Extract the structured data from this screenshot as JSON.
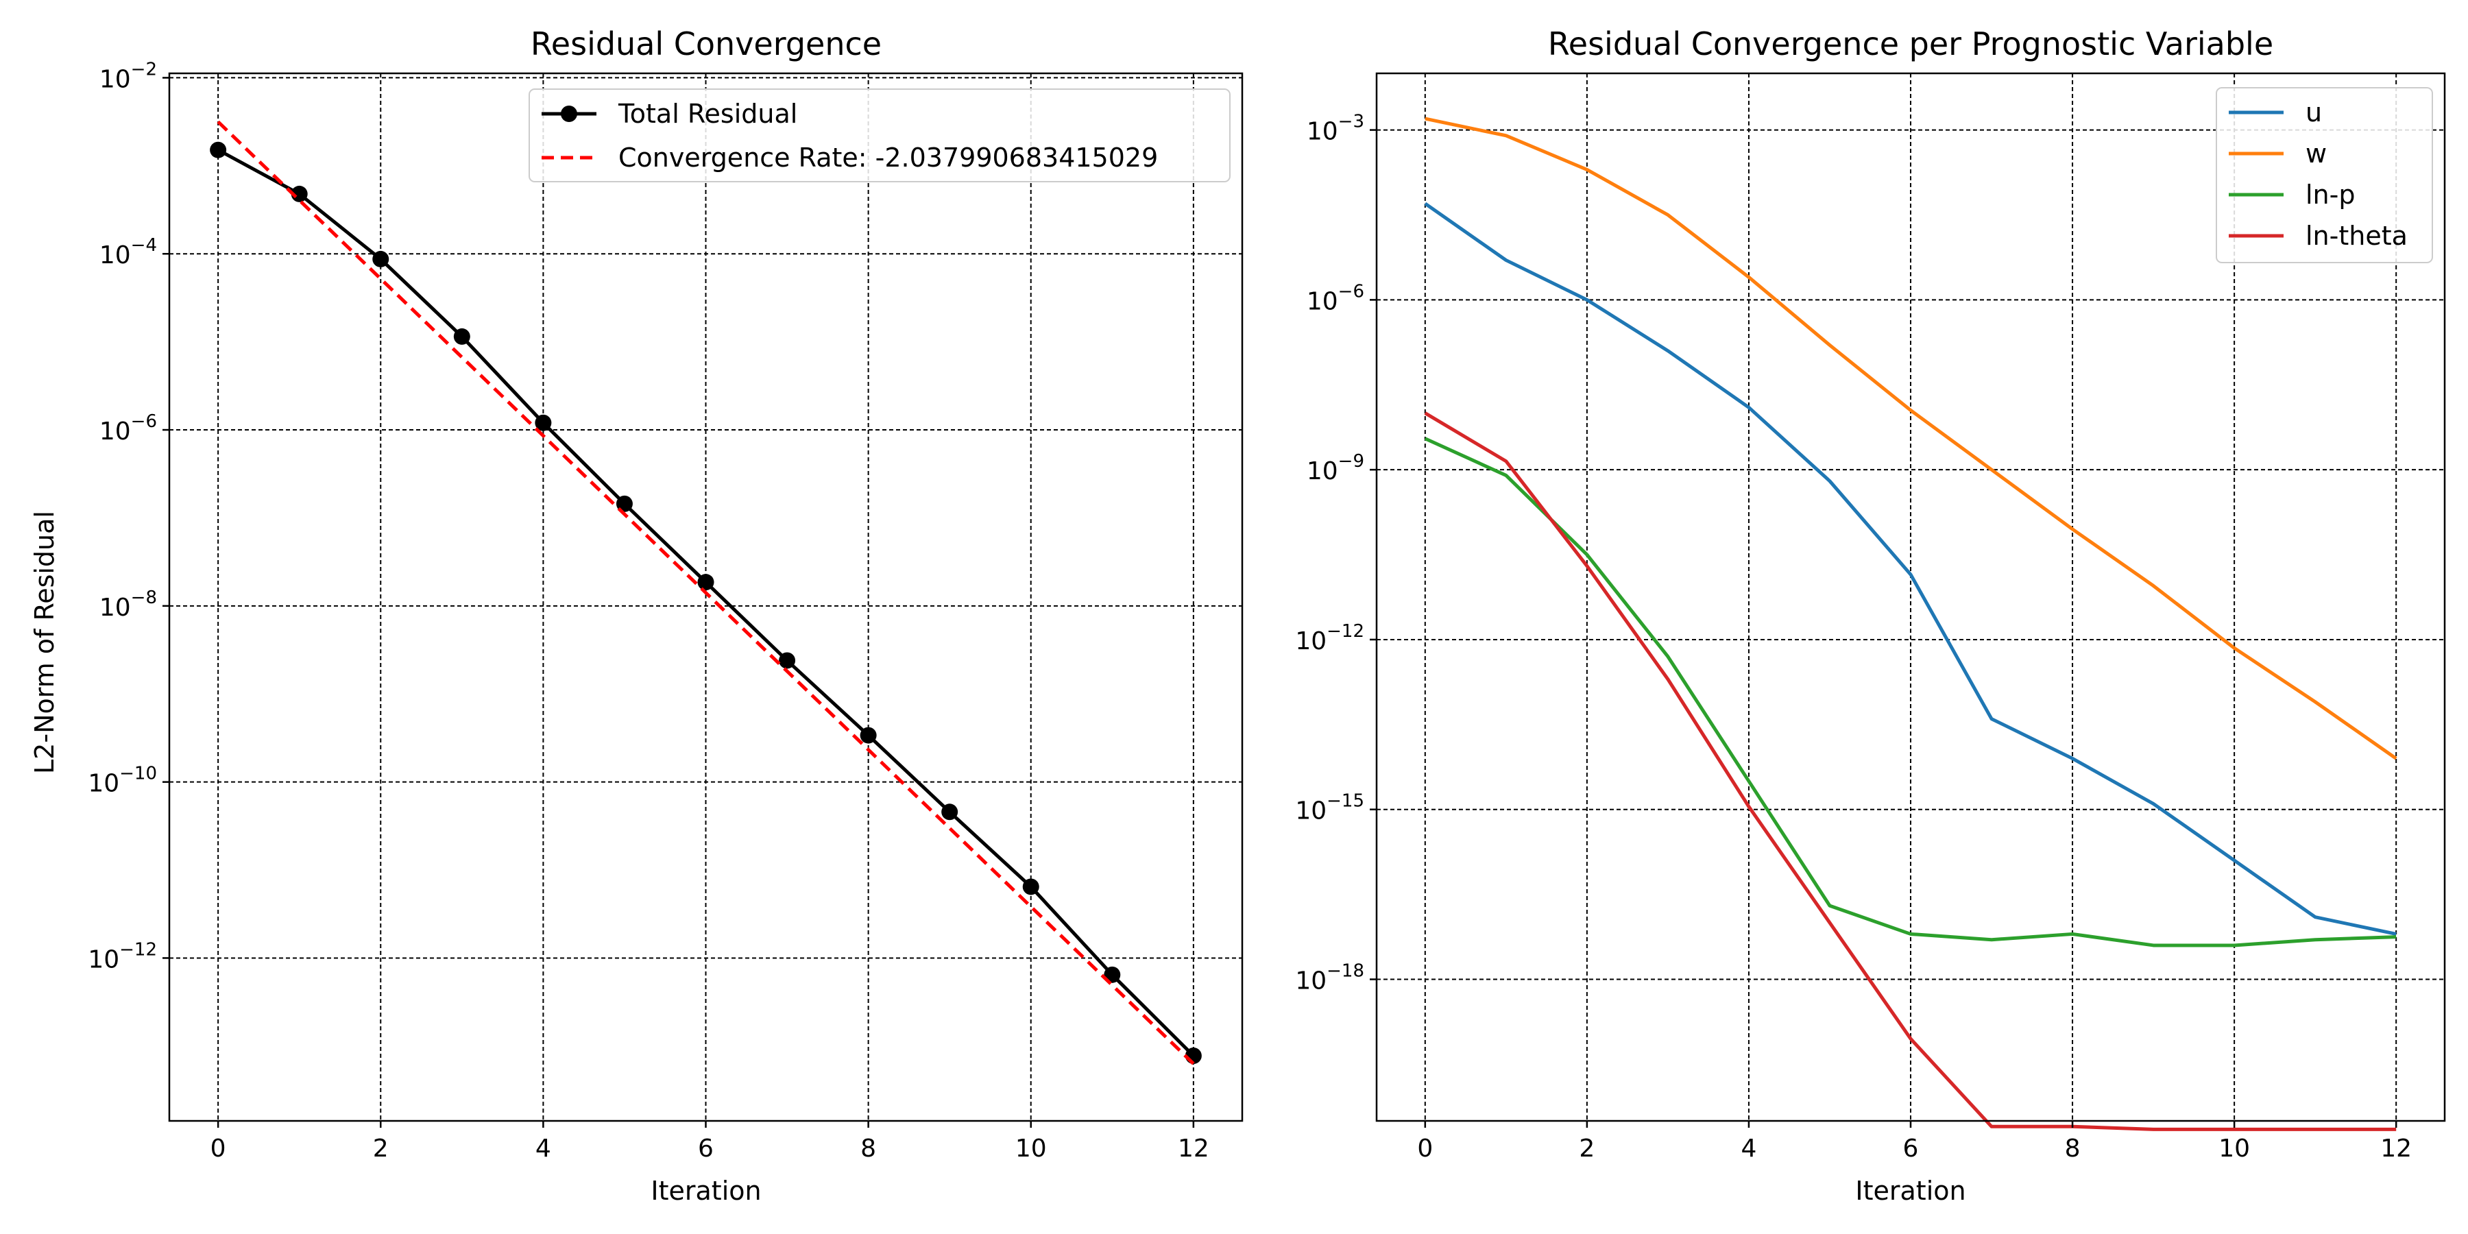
{
  "chart_data": [
    {
      "type": "line",
      "title": "Residual Convergence",
      "xlabel": "Iteration",
      "ylabel": "L2-Norm of Residual",
      "yscale": "log",
      "xlim": [
        -0.6,
        12.6
      ],
      "ylim_log10": [
        -13.85,
        -1.95
      ],
      "xticks": [
        0,
        2,
        4,
        6,
        8,
        10,
        12
      ],
      "yticks_log10": [
        -12,
        -10,
        -8,
        -6,
        -4,
        -2
      ],
      "grid": true,
      "legend_position": "top-right",
      "series": [
        {
          "name": "Total Residual",
          "color": "#000000",
          "style": "solid",
          "marker": "circle",
          "x": [
            0,
            1,
            2,
            3,
            4,
            5,
            6,
            7,
            8,
            9,
            10,
            11,
            12
          ],
          "y_log10": [
            -2.82,
            -3.32,
            -4.06,
            -4.94,
            -5.92,
            -6.84,
            -7.73,
            -8.62,
            -9.47,
            -10.34,
            -11.19,
            -12.19,
            -13.11
          ]
        },
        {
          "name": "Convergence Rate: -2.037990683415029",
          "color": "#ff0000",
          "style": "dashed",
          "marker": "none",
          "x": [
            0,
            12
          ],
          "y_log10": [
            -2.5,
            -13.2
          ]
        }
      ]
    },
    {
      "type": "line",
      "title": "Residual Convergence per Prognostic Variable",
      "xlabel": "Iteration",
      "ylabel": "",
      "yscale": "log",
      "xlim": [
        -0.6,
        12.6
      ],
      "ylim_log10": [
        -20.5,
        -2.0
      ],
      "xticks": [
        0,
        2,
        4,
        6,
        8,
        10,
        12
      ],
      "yticks_log10": [
        -18,
        -15,
        -12,
        -9,
        -6,
        -3
      ],
      "grid": true,
      "legend_position": "top-right",
      "series": [
        {
          "name": "u",
          "color": "#1f77b4",
          "x": [
            0,
            1,
            2,
            3,
            4,
            5,
            6,
            7,
            8,
            9,
            10,
            11,
            12
          ],
          "y_log10": [
            -4.3,
            -5.3,
            -6.0,
            -6.9,
            -7.9,
            -9.2,
            -10.85,
            -13.4,
            -14.1,
            -14.9,
            -15.9,
            -16.9,
            -17.2
          ]
        },
        {
          "name": "w",
          "color": "#ff7f0e",
          "x": [
            0,
            1,
            2,
            3,
            4,
            5,
            6,
            7,
            8,
            9,
            10,
            11,
            12
          ],
          "y_log10": [
            -2.8,
            -3.1,
            -3.7,
            -4.5,
            -5.6,
            -6.8,
            -7.95,
            -9.0,
            -10.05,
            -11.05,
            -12.15,
            -13.1,
            -14.1
          ]
        },
        {
          "name": "ln-p",
          "color": "#2ca02c",
          "x": [
            0,
            1,
            2,
            3,
            4,
            5,
            6,
            7,
            8,
            9,
            10,
            11,
            12
          ],
          "y_log10": [
            -8.45,
            -9.1,
            -10.5,
            -12.3,
            -14.5,
            -16.7,
            -17.2,
            -17.3,
            -17.2,
            -17.4,
            -17.4,
            -17.3,
            -17.25
          ]
        },
        {
          "name": "ln-theta",
          "color": "#d62728",
          "x": [
            0,
            1,
            2,
            3,
            4,
            5,
            6,
            7,
            8,
            9,
            10,
            11,
            12
          ],
          "y_log10": [
            -8.0,
            -8.85,
            -10.7,
            -12.7,
            -14.95,
            -17.0,
            -19.05,
            -20.6,
            -20.6,
            -20.65,
            -20.65,
            -20.65,
            -20.65
          ]
        }
      ]
    }
  ]
}
